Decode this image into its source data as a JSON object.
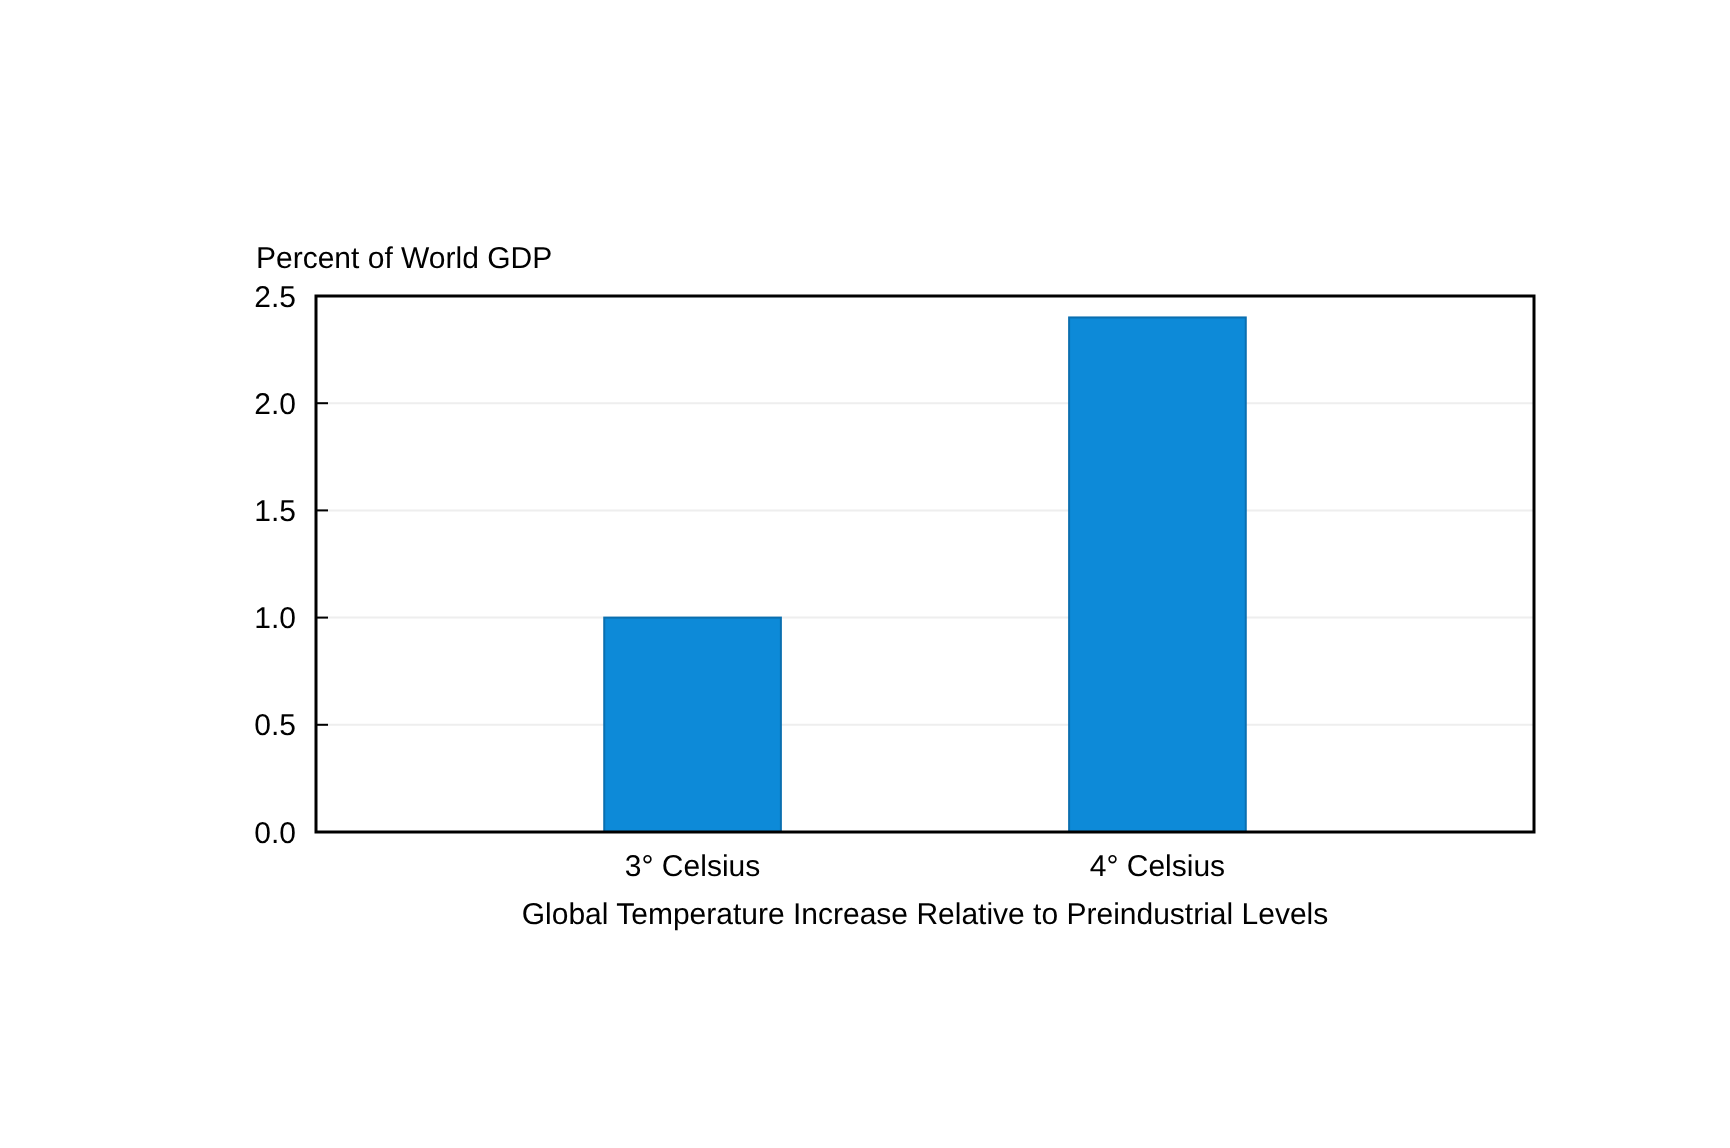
{
  "chart_data": {
    "type": "bar",
    "ylabel": "Percent of World GDP",
    "xlabel": "Global Temperature Increase Relative to Preindustrial Levels",
    "categories": [
      "3° Celsius",
      "4° Celsius"
    ],
    "values": [
      1.0,
      2.4
    ],
    "color": "#0d8ad8",
    "ylim": [
      0,
      2.5
    ],
    "yticks": [
      {
        "value": 0,
        "label": "0.0"
      },
      {
        "value": 0.5,
        "label": "0.5"
      },
      {
        "value": 1,
        "label": "1.0"
      },
      {
        "value": 1.5,
        "label": "1.5"
      },
      {
        "value": 2,
        "label": "2.0"
      },
      {
        "value": 2.5,
        "label": "2.5"
      }
    ],
    "grid": "y"
  }
}
